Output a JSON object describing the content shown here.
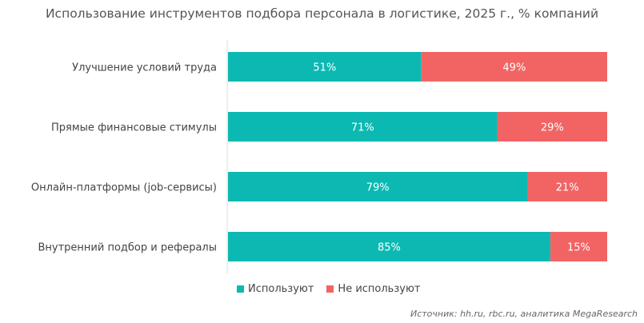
{
  "chart_data": {
    "type": "bar",
    "orientation": "horizontal",
    "stacked": true,
    "title": "Использование инструментов подбора персонала в логистике, 2025 г., % компаний",
    "categories": [
      "Улучшение условий труда",
      "Прямые финансовые стимулы",
      "Онлайн-платформы (job-сервисы)",
      "Внутренний подбор и рефералы"
    ],
    "series": [
      {
        "name": "Используют",
        "values": [
          51,
          71,
          79,
          85
        ],
        "color": "#0BB9B2"
      },
      {
        "name": "Не используют",
        "values": [
          49,
          29,
          21,
          15
        ],
        "color": "#F26464"
      }
    ],
    "value_suffix": "%",
    "xlim": [
      0,
      100
    ],
    "grid": false,
    "legend": "bottom",
    "source": "Источник: hh.ru, rbc.ru, аналитика MegaResearch"
  }
}
